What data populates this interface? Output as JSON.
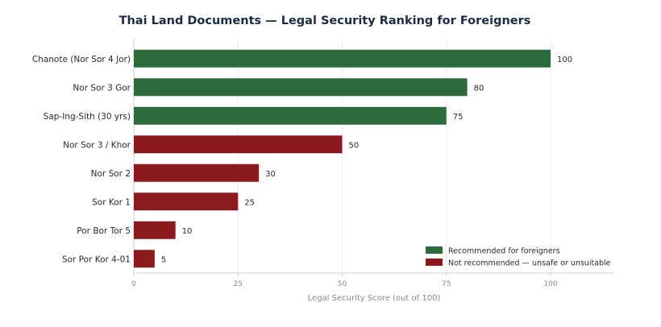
{
  "chart_data": {
    "type": "bar",
    "orientation": "horizontal",
    "title": "Thai Land Documents — Legal Security Ranking for Foreigners",
    "xlabel": "Legal Security Score (out of 100)",
    "ylabel": "",
    "xlim": [
      0,
      115
    ],
    "xticks": [
      0,
      25,
      50,
      75,
      100
    ],
    "grid": "vertical",
    "legend_position": "bottom-right",
    "categories": [
      "Chanote (Nor Sor 4 Jor)",
      "Nor Sor 3 Gor",
      "Sap-Ing-Sith (30 yrs)",
      "Nor Sor 3 / Khor",
      "Nor Sor 2",
      "Sor Kor 1",
      "Por Bor Tor 5",
      "Sor Por Kor 4-01"
    ],
    "values": [
      100,
      80,
      75,
      50,
      30,
      25,
      10,
      5
    ],
    "groups": [
      "recommended",
      "recommended",
      "recommended",
      "not_recommended",
      "not_recommended",
      "not_recommended",
      "not_recommended",
      "not_recommended"
    ],
    "legend": [
      {
        "key": "recommended",
        "label": "Recommended for foreigners",
        "color": "#2e6b3c"
      },
      {
        "key": "not_recommended",
        "label": "Not recommended — unsafe or unsuitable",
        "color": "#8b1a1e"
      }
    ]
  }
}
